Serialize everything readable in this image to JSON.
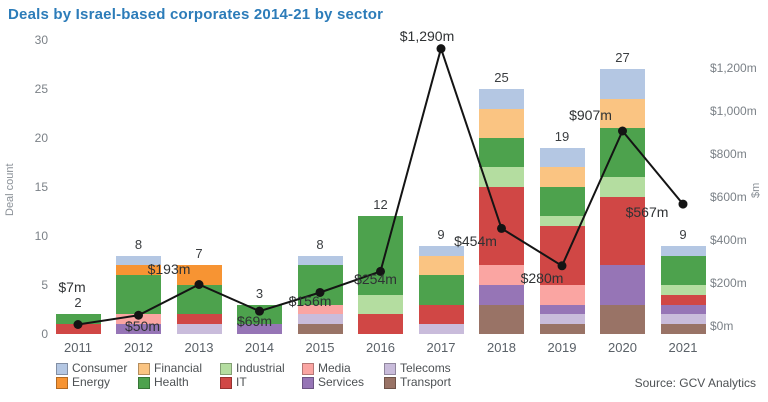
{
  "title": "Deals by Israel-based corporates 2014-21 by sector",
  "source": "Source: GCV Analytics",
  "axes": {
    "left": {
      "title": "Deal count",
      "ticks": [
        0,
        5,
        10,
        15,
        20,
        25,
        30
      ]
    },
    "right": {
      "title": "$m",
      "ticks": [
        {
          "value": 0,
          "label": "$0m"
        },
        {
          "value": 200,
          "label": "$200m"
        },
        {
          "value": 400,
          "label": "$400m"
        },
        {
          "value": 600,
          "label": "$600m"
        },
        {
          "value": 800,
          "label": "$800m"
        },
        {
          "value": 1000,
          "label": "$1,000m"
        },
        {
          "value": 1200,
          "label": "$1,200m"
        }
      ]
    }
  },
  "chart_data": {
    "type": "bar",
    "subtype": "stacked-bar-with-line-overlay",
    "title": "Deals by Israel-based corporates 2014-21 by sector",
    "categories": [
      "2011",
      "2012",
      "2013",
      "2014",
      "2015",
      "2016",
      "2017",
      "2018",
      "2019",
      "2020",
      "2021"
    ],
    "ylabel_left": "Deal count",
    "ylabel_right": "$m",
    "ylim_left": [
      0,
      30
    ],
    "ylim_right": [
      0,
      1200
    ],
    "grid": false,
    "legend_position": "bottom",
    "stack_order": "first series on top of stack",
    "series": [
      {
        "name": "Consumer",
        "color": "#b4c7e3",
        "values": [
          0,
          1,
          0,
          0,
          1,
          0,
          1,
          2,
          2,
          3,
          1
        ]
      },
      {
        "name": "Energy",
        "color": "#f79433",
        "values": [
          0,
          1,
          2,
          0,
          0,
          0,
          0,
          0,
          0,
          0,
          0
        ]
      },
      {
        "name": "Financial",
        "color": "#fac482",
        "values": [
          0,
          0,
          0,
          0,
          0,
          0,
          2,
          3,
          2,
          3,
          0
        ]
      },
      {
        "name": "Health",
        "color": "#4da24d",
        "values": [
          1,
          4,
          3,
          2,
          4,
          8,
          3,
          3,
          3,
          5,
          3
        ]
      },
      {
        "name": "Industrial",
        "color": "#b4dda0",
        "values": [
          0,
          0,
          0,
          0,
          0,
          2,
          0,
          2,
          1,
          2,
          1
        ]
      },
      {
        "name": "IT",
        "color": "#d04745",
        "values": [
          1,
          0,
          1,
          0,
          0,
          2,
          2,
          8,
          6,
          7,
          1
        ]
      },
      {
        "name": "Media",
        "color": "#faa5a2",
        "values": [
          0,
          1,
          0,
          0,
          1,
          0,
          0,
          2,
          2,
          0,
          0
        ]
      },
      {
        "name": "Services",
        "color": "#9675b6",
        "values": [
          0,
          1,
          0,
          1,
          0,
          0,
          0,
          2,
          1,
          4,
          1
        ]
      },
      {
        "name": "Telecoms",
        "color": "#c9bcdb",
        "values": [
          0,
          0,
          1,
          0,
          1,
          0,
          1,
          0,
          1,
          0,
          1
        ]
      },
      {
        "name": "Transport",
        "color": "#997366",
        "values": [
          0,
          0,
          0,
          0,
          1,
          0,
          0,
          3,
          1,
          3,
          1
        ]
      }
    ],
    "bar_totals": [
      2,
      8,
      7,
      3,
      8,
      12,
      9,
      25,
      19,
      27,
      9
    ],
    "line_series": {
      "axis": "right",
      "color": "#141414",
      "values": [
        7,
        50,
        193,
        69,
        156,
        254,
        1290,
        454,
        280,
        907,
        567
      ],
      "labels": [
        "$7m",
        "$50m",
        "$193m",
        "$69m",
        "$156m",
        "$254m",
        "$1,290m",
        "$454m",
        "$280m",
        "$907m",
        "$567m"
      ]
    }
  }
}
